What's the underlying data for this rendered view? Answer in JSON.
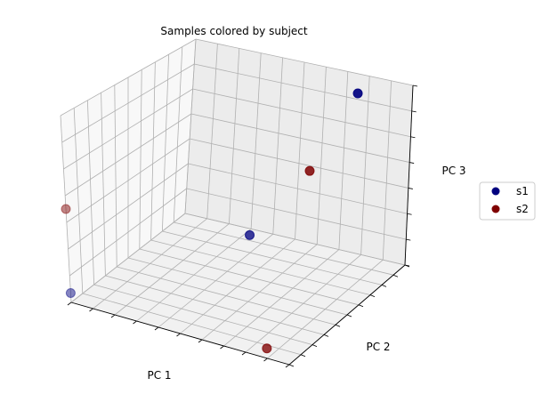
{
  "chart_data": {
    "type": "scatter",
    "projection": "3d",
    "title": "Samples colored by subject",
    "xlabel": "PC 1",
    "ylabel": "PC 2",
    "zlabel": "PC 3",
    "tick_labels_visible": false,
    "grid": true,
    "legend_placement": "right",
    "series": [
      {
        "name": "s1",
        "color": "#00007f",
        "points": [
          {
            "x": 0.0,
            "y": 1.0,
            "z": 0.05
          },
          {
            "x": 0.85,
            "y": 1.0,
            "z": 0.6
          },
          {
            "x": 0.78,
            "y": 0.05,
            "z": 0.92
          }
        ]
      },
      {
        "name": "s2",
        "color": "#7f0000",
        "points": [
          {
            "x": 0.0,
            "y": 1.0,
            "z": 0.5
          },
          {
            "x": 0.55,
            "y": 0.0,
            "z": 0.4
          },
          {
            "x": 0.9,
            "y": 1.0,
            "z": 0.05
          }
        ]
      }
    ]
  }
}
